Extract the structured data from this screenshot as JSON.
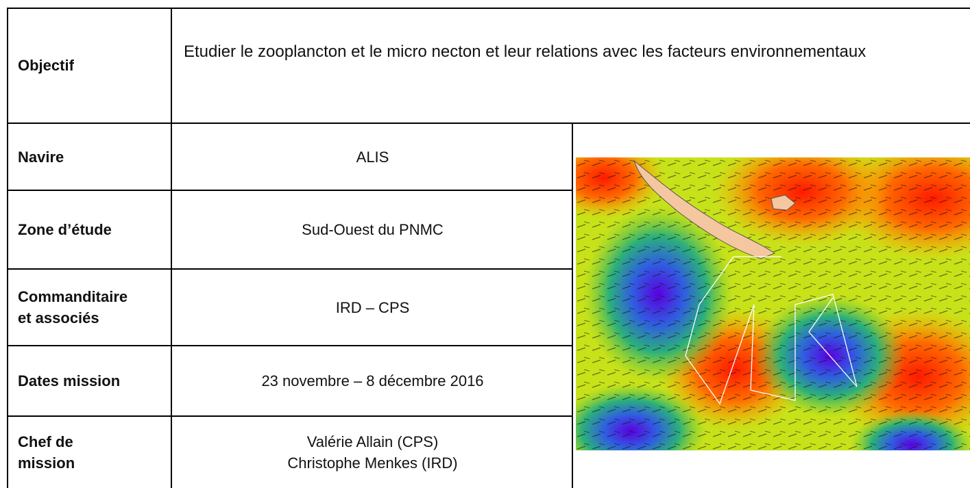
{
  "table": {
    "objective": {
      "label": "Objectif",
      "value": "Etudier le zooplancton et le micro necton et leur relations avec les facteurs environnementaux"
    },
    "rows": [
      {
        "label": [
          "Navire"
        ],
        "value": [
          "ALIS"
        ]
      },
      {
        "label": [
          "Zone d’étude"
        ],
        "value": [
          "Sud-Ouest du PNMC"
        ]
      },
      {
        "label": [
          "Commanditaire",
          "et associés"
        ],
        "value": [
          "IRD – CPS"
        ]
      },
      {
        "label": [
          "Dates mission"
        ],
        "value": [
          "23 novembre – 8 décembre 2016"
        ]
      },
      {
        "label": [
          "Chef de",
          "mission"
        ],
        "value": [
          "Valérie Allain (CPS)",
          "Christophe Menkes (IRD)"
        ]
      }
    ]
  }
}
